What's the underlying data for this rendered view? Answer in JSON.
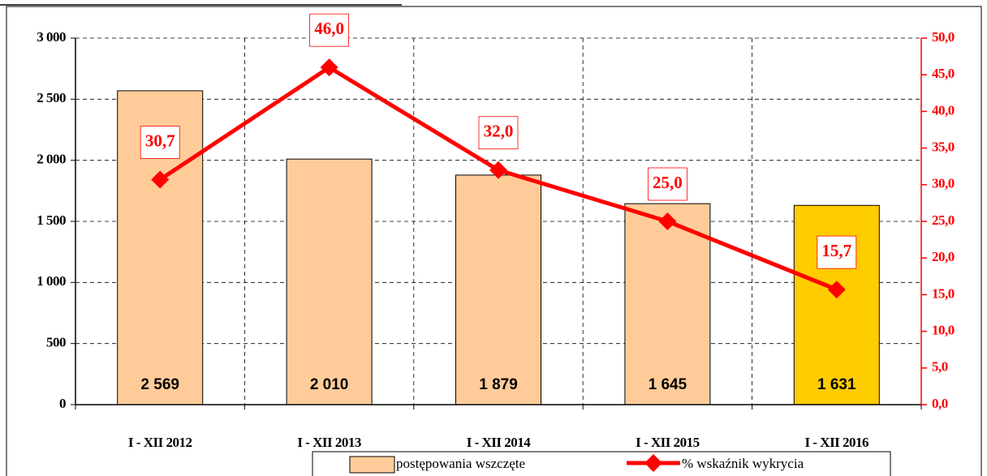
{
  "chart_data": {
    "type": "bar",
    "categories": [
      "I - XII 2012",
      "I - XII 2013",
      "I - XII 2014",
      "I - XII 2015",
      "I - XII 2016"
    ],
    "series": [
      {
        "name": "postępowania wszczęte",
        "type": "bar",
        "color": "#FFCC99",
        "colors": [
          "#FFCC99",
          "#FFCC99",
          "#FFCC99",
          "#FFCC99",
          "#FFCC00"
        ],
        "values": [
          2569,
          2010,
          1879,
          1645,
          1631
        ],
        "value_labels": [
          "2 569",
          "2 010",
          "1 879",
          "1 645",
          "1 631"
        ]
      },
      {
        "name": "% wskaźnik wykrycia",
        "type": "line",
        "axis": "y2",
        "color": "#FF0000",
        "values": [
          30.7,
          46.0,
          32.0,
          25.0,
          15.7
        ],
        "value_labels": [
          "30,7",
          "46,0",
          "32,0",
          "25,0",
          "15,7"
        ]
      }
    ],
    "ylim": [
      0,
      3000
    ],
    "yticks": [
      0,
      500,
      {
        "value": 1000,
        "label": "1 000"
      },
      {
        "value": 1500,
        "label": "1 500"
      },
      {
        "value": 2000,
        "label": "2 000"
      },
      {
        "value": 2500,
        "label": "2 500"
      },
      {
        "value": 3000,
        "label": "3 000"
      }
    ],
    "y2lim": [
      0,
      50
    ],
    "y2ticks": [
      {
        "value": 0,
        "label": "0,0"
      },
      {
        "value": 5,
        "label": "5,0"
      },
      {
        "value": 10,
        "label": "10,0"
      },
      {
        "value": 15,
        "label": "15,0"
      },
      {
        "value": 20,
        "label": "20,0"
      },
      {
        "value": 25,
        "label": "25,0"
      },
      {
        "value": 30,
        "label": "30,0"
      },
      {
        "value": 35,
        "label": "35,0"
      },
      {
        "value": 40,
        "label": "40,0"
      },
      {
        "value": 45,
        "label": "45,0"
      },
      {
        "value": 50,
        "label": "50,0"
      }
    ],
    "grid": true,
    "legend": "bottom"
  }
}
